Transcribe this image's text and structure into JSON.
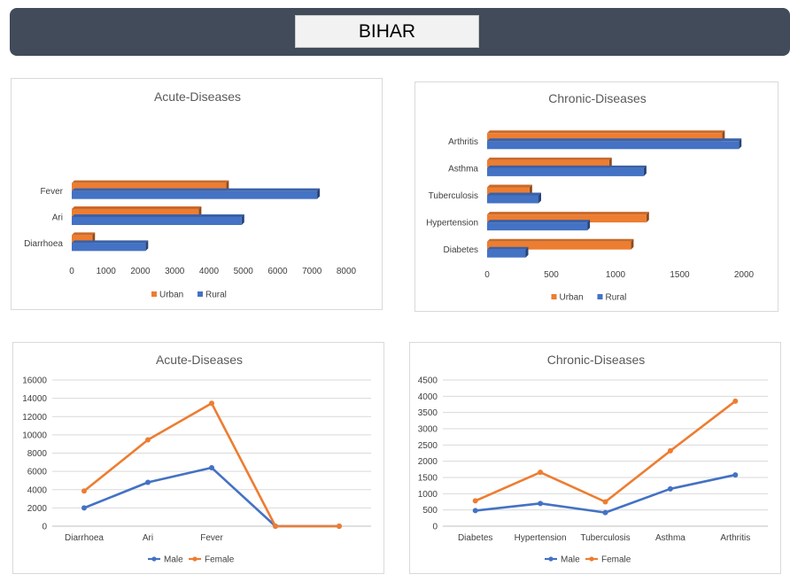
{
  "header": {
    "title": "BIHAR"
  },
  "colors": {
    "urban": "#ed7d31",
    "rural": "#4472c4",
    "male": "#4472c4",
    "female": "#ed7d31"
  },
  "chart_data": [
    {
      "id": "c1",
      "type": "bar",
      "orientation": "horizontal",
      "title": "Acute-Diseases",
      "categories": [
        "Fever",
        "Ari",
        "Diarrhoea"
      ],
      "series": [
        {
          "name": "Urban",
          "values": [
            4500,
            3700,
            600
          ]
        },
        {
          "name": "Rural",
          "values": [
            7150,
            4950,
            2150
          ]
        }
      ],
      "xlim": [
        0,
        8000
      ],
      "xticks": [
        "0",
        "1000",
        "2000",
        "3000",
        "4000",
        "5000",
        "6000",
        "7000",
        "8000"
      ],
      "legend": [
        "Urban",
        "Rural"
      ],
      "legend_position": "bottom",
      "grid": false
    },
    {
      "id": "c2",
      "type": "bar",
      "orientation": "horizontal",
      "title": "Chronic-Diseases",
      "categories": [
        "Arthritis",
        "Asthma",
        "Tuberculosis",
        "Hypertension",
        "Diabetes"
      ],
      "series": [
        {
          "name": "Urban",
          "values": [
            1830,
            950,
            330,
            1240,
            1120
          ]
        },
        {
          "name": "Rural",
          "values": [
            1960,
            1220,
            400,
            780,
            300
          ]
        }
      ],
      "xlim": [
        0,
        2000
      ],
      "xticks": [
        "0",
        "500",
        "1000",
        "1500",
        "2000"
      ],
      "legend": [
        "Urban",
        "Rural"
      ],
      "legend_position": "bottom",
      "grid": false
    },
    {
      "id": "c3",
      "type": "line",
      "title": "Acute-Diseases",
      "categories": [
        "Diarrhoea",
        "Ari",
        "Fever",
        "",
        ""
      ],
      "series": [
        {
          "name": "Male",
          "values": [
            2000,
            4800,
            6400,
            0,
            0
          ]
        },
        {
          "name": "Female",
          "values": [
            3850,
            9450,
            13450,
            0,
            0
          ]
        }
      ],
      "ylim": [
        0,
        16000
      ],
      "yticks": [
        "0",
        "2000",
        "4000",
        "6000",
        "8000",
        "10000",
        "12000",
        "14000",
        "16000"
      ],
      "legend": [
        "Male",
        "Female"
      ],
      "legend_position": "bottom",
      "grid": true
    },
    {
      "id": "c4",
      "type": "line",
      "title": "Chronic-Diseases",
      "categories": [
        "Diabetes",
        "Hypertension",
        "Tuberculosis",
        "Asthma",
        "Arthritis"
      ],
      "series": [
        {
          "name": "Male",
          "values": [
            480,
            700,
            420,
            1150,
            1580
          ]
        },
        {
          "name": "Female",
          "values": [
            780,
            1660,
            750,
            2320,
            3850
          ]
        }
      ],
      "ylim": [
        0,
        4500
      ],
      "yticks": [
        "0",
        "500",
        "1000",
        "1500",
        "2000",
        "2500",
        "3000",
        "3500",
        "4000",
        "4500"
      ],
      "legend": [
        "Male",
        "Female"
      ],
      "legend_position": "bottom",
      "grid": true
    }
  ]
}
